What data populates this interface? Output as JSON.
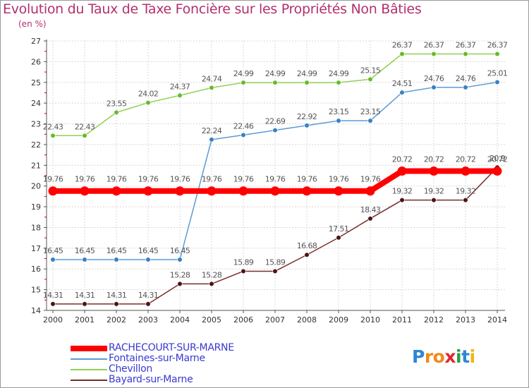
{
  "chart_data": {
    "type": "line",
    "title": "Evolution du Taux de Taxe Foncière sur les Propriétés Non Bâties",
    "subtitle": "(en %)",
    "xlabel": "",
    "ylabel": "",
    "ylim": [
      14,
      27
    ],
    "yticks": [
      "14",
      "15",
      "16",
      "17",
      "18",
      "19",
      "20",
      "21",
      "22",
      "23",
      "24",
      "25",
      "26",
      "27"
    ],
    "categories": [
      "2000",
      "2001",
      "2002",
      "2003",
      "2004",
      "2005",
      "2006",
      "2007",
      "2008",
      "2009",
      "2010",
      "2011",
      "2012",
      "2013",
      "2014"
    ],
    "series": [
      {
        "name": "RACHECOURT-SUR-MARNE",
        "color": "#ff0000",
        "values": [
          19.76,
          19.76,
          19.76,
          19.76,
          19.76,
          19.76,
          19.76,
          19.76,
          19.76,
          19.76,
          19.76,
          20.72,
          20.72,
          20.72,
          20.72
        ],
        "labels": [
          "19.76",
          "19.76",
          "19.76",
          "19.76",
          "19.76",
          "19.76",
          "19.76",
          "19.76",
          "19.76",
          "19.76",
          "19.76",
          "20.72",
          "20.72",
          "20.72",
          "20.72"
        ]
      },
      {
        "name": "Fontaines-sur-Marne",
        "color": "#5b9bd5",
        "values": [
          16.45,
          16.45,
          16.45,
          16.45,
          16.45,
          22.24,
          22.46,
          22.69,
          22.92,
          23.15,
          23.15,
          24.51,
          24.76,
          24.76,
          25.01
        ],
        "labels": [
          "16.45",
          "16.45",
          "16.45",
          "16.45",
          "16.45",
          "22.24",
          "22.46",
          "22.69",
          "22.92",
          "23.15",
          "23.15",
          "24.51",
          "24.76",
          "24.76",
          "25.01"
        ]
      },
      {
        "name": "Chevillon",
        "color": "#90d050",
        "values": [
          22.43,
          22.43,
          23.55,
          24.02,
          24.37,
          24.74,
          24.99,
          24.99,
          24.99,
          24.99,
          25.15,
          26.37,
          26.37,
          26.37,
          26.37
        ],
        "labels": [
          "22.43",
          "22.43",
          "23.55",
          "24.02",
          "24.37",
          "24.74",
          "24.99",
          "24.99",
          "24.99",
          "24.99",
          "25.15",
          "26.37",
          "26.37",
          "26.37",
          "26.37"
        ]
      },
      {
        "name": "Bayard-sur-Marne",
        "color": "#7a2c2c",
        "values": [
          14.31,
          14.31,
          14.31,
          14.31,
          15.28,
          15.28,
          15.89,
          15.89,
          16.68,
          17.51,
          18.43,
          19.32,
          19.32,
          19.32,
          20.9
        ],
        "labels": [
          "14.31",
          "14.31",
          "14.31",
          "14.31",
          "15.28",
          "15.28",
          "15.89",
          "15.89",
          "16.68",
          "17.51",
          "18.43",
          "19.32",
          "19.32",
          "19.32",
          "20.9"
        ]
      }
    ],
    "legend": {
      "placement": "bottom-left",
      "items": [
        "RACHECOURT-SUR-MARNE",
        "Fontaines-sur-Marne",
        "Chevillon",
        "Bayard-sur-Marne"
      ]
    }
  },
  "brand": {
    "letters": [
      "P",
      "r",
      "o",
      "x",
      "i",
      "t",
      "i"
    ]
  }
}
